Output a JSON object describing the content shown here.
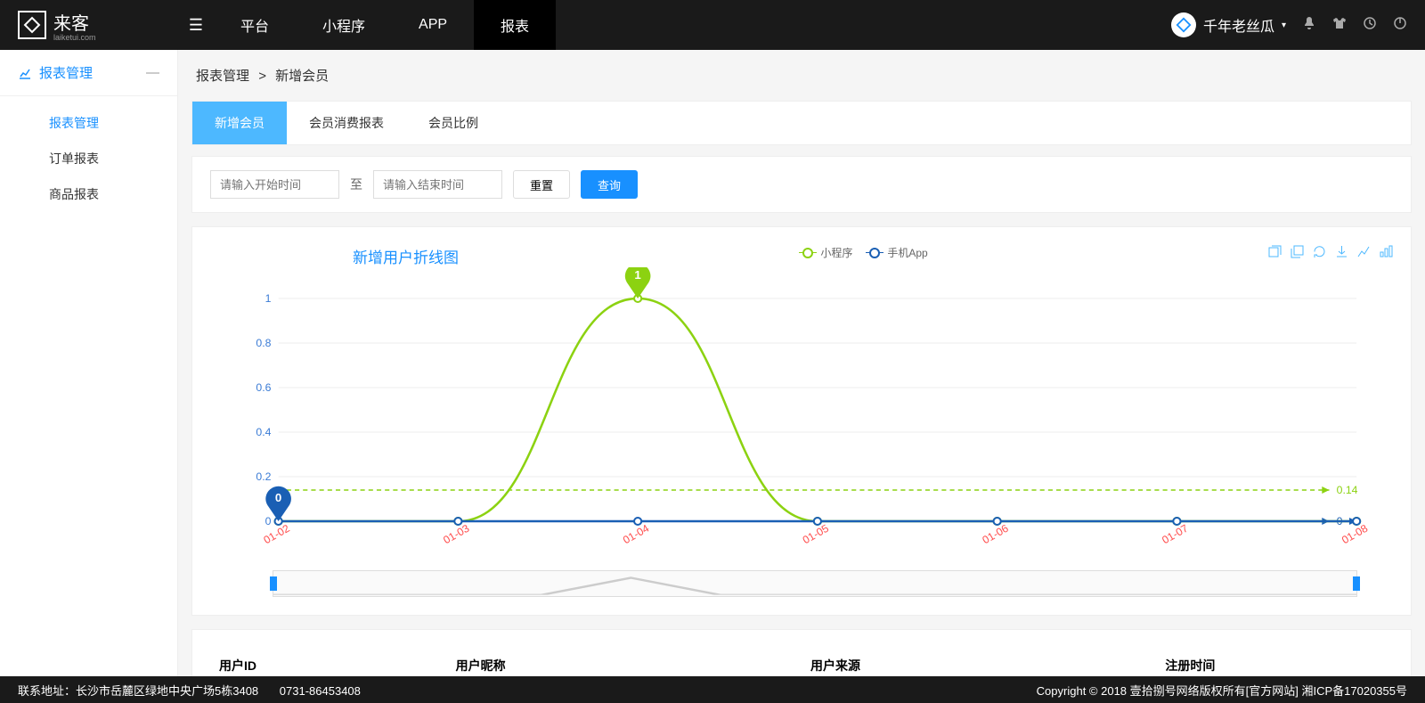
{
  "header": {
    "logo_text": "来客",
    "logo_sub": "laiketui.com",
    "nav": [
      "平台",
      "小程序",
      "APP",
      "报表"
    ],
    "nav_active": 3,
    "username": "千年老丝瓜"
  },
  "sidebar": {
    "title": "报表管理",
    "collapse": "—",
    "items": [
      "报表管理",
      "订单报表",
      "商品报表"
    ],
    "active": 0
  },
  "breadcrumb": {
    "parent": "报表管理",
    "sep": ">",
    "current": "新增会员"
  },
  "tabs": {
    "items": [
      "新增会员",
      "会员消费报表",
      "会员比例"
    ],
    "active": 0
  },
  "filter": {
    "start_placeholder": "请输入开始时间",
    "sep": "至",
    "end_placeholder": "请输入结束时间",
    "reset": "重置",
    "query": "查询"
  },
  "chart": {
    "title": "新增用户折线图",
    "type": "line",
    "legend": [
      {
        "name": "小程序",
        "color": "#8cd211"
      },
      {
        "name": "手机App",
        "color": "#1a5fb4"
      }
    ],
    "x_labels": [
      "01-02",
      "01-03",
      "01-04",
      "01-05",
      "01-06",
      "01-07",
      "01-08"
    ],
    "x_label_color": "#ff4d4d",
    "y_ticks": [
      0,
      0.2,
      0.4,
      0.6,
      0.8,
      1
    ],
    "y_label_color": "#3a7bd5",
    "ylim": [
      0,
      1
    ],
    "series": [
      {
        "name": "小程序",
        "color": "#8cd211",
        "values": [
          0,
          0,
          1,
          0,
          0,
          0,
          0
        ],
        "avg": 0.14
      },
      {
        "name": "手机App",
        "color": "#1a5fb4",
        "values": [
          0,
          0,
          0,
          0,
          0,
          0,
          0
        ],
        "avg": 0
      }
    ],
    "grid_color": "#eeeeee",
    "background": "#ffffff",
    "marker_green": {
      "label": "1",
      "x": 2,
      "color": "#8cd211"
    },
    "marker_blue": {
      "label": "0",
      "x": 0,
      "color": "#1a5fb4"
    },
    "avg_green_label": "0.14",
    "avg_blue_label": "0"
  },
  "table": {
    "columns": [
      "用户ID",
      "用户昵称",
      "用户来源",
      "注册时间"
    ]
  },
  "footer": {
    "address_label": "联系地址：",
    "address": "长沙市岳麓区绿地中央广场5栋3408",
    "phone": "0731-86453408",
    "copyright": "Copyright © 2018 壹拾捌号网络版权所有[官方网站]    湘ICP备17020355号"
  }
}
